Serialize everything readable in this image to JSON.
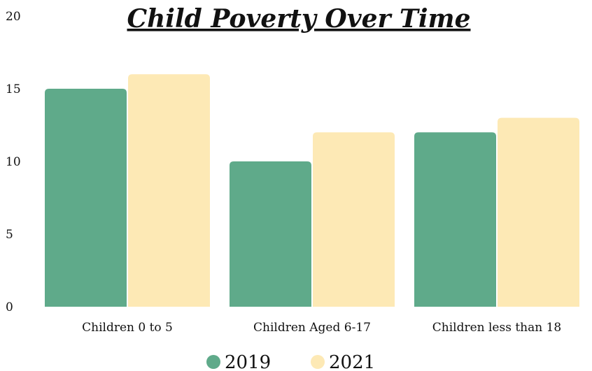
{
  "chart_data": {
    "type": "bar",
    "title": "Child Poverty Over Time",
    "xlabel": "",
    "ylabel": "",
    "categories": [
      "Children 0 to 5",
      "Children Aged 6-17",
      "Children less than 18"
    ],
    "series": [
      {
        "name": "2019",
        "values": [
          15,
          10,
          12
        ],
        "color": "#5faa8a"
      },
      {
        "name": "2021",
        "values": [
          16,
          12,
          13
        ],
        "color": "#fde9b5"
      }
    ],
    "ylim": [
      0,
      20
    ],
    "yticks": [
      0,
      5,
      10,
      15,
      20
    ],
    "grid": false,
    "legend": "bottom-center"
  }
}
